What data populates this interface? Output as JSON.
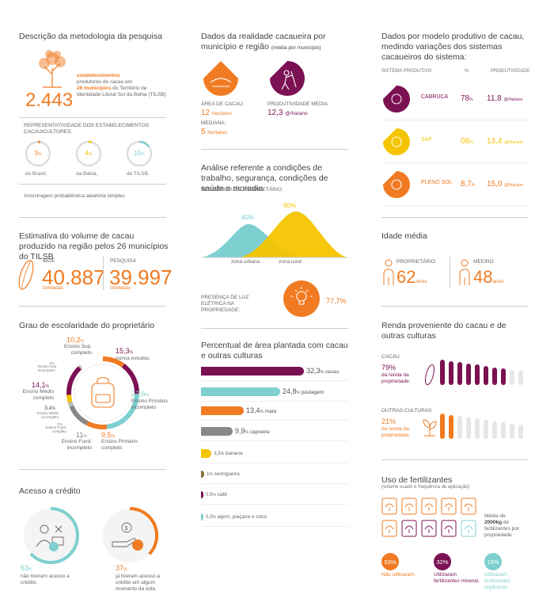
{
  "col1": {
    "method_title": "Descrição da metodologia da pesquisa",
    "establishments_count": "2.443",
    "establishments_bold": "estabelecimentos",
    "establishments_text1": "produtores de cacau em",
    "establishments_bold2": "26 municípios",
    "establishments_text2": "do Território de Identidade Litoral Sul da Bahia (TILSB)",
    "repr_title": "REPRESENTATIVIDADE DOS ESTABELECIMENTOS CACAUICULTORES:",
    "repr": [
      {
        "value": "3",
        "unit": "%",
        "label": "do Brasil;",
        "fraction": 0.03
      },
      {
        "value": "4",
        "unit": "%",
        "label": "da Bahia,",
        "fraction": 0.04
      },
      {
        "value": "15",
        "unit": "%",
        "label": "do TILSB.",
        "fraction": 0.15
      }
    ],
    "sampling": "Amostragem probabilística aleatória simples",
    "volume_title": "Estimativa do volume de cacau produzido na região pelos 26 municípios do TILSB",
    "ibge_label": "IBGE",
    "ibge_value": "40.887",
    "ibge_unit": "toneladas",
    "pesquisa_label": "PESQUISA",
    "pesquisa_value": "39.997",
    "pesquisa_unit": "toneladas",
    "edu_title": "Grau de escolaridade do proprietário",
    "edu": [
      {
        "pct": "10,2",
        "label": "Ensino Sup. completo",
        "color": "#f07b22"
      },
      {
        "pct": "15,3",
        "label": "nunca estudou",
        "color": "#7b1152"
      },
      {
        "pct": "22,6",
        "label": "Ensino Primário incompleto",
        "color": "#7ecfcf"
      },
      {
        "pct": "9,5",
        "label": "Ensino Primário completo",
        "color": "#f07b22"
      },
      {
        "pct": "11",
        "label": "Ensino Fund. incompleto",
        "color": "#888888"
      },
      {
        "pct": "3,4",
        "label": "Ensino Médio incompleto",
        "color": "#f5c400"
      },
      {
        "pct": "14,1",
        "label": "Ensino Médio completo",
        "color": "#7b1152"
      },
      {
        "pct": "1",
        "label": "Ensino Sup. incompleto",
        "color": "#cccccc"
      },
      {
        "pct": "2",
        "label": "Ensino Fund. completo",
        "color": "#bbbbbb"
      }
    ],
    "edu_small_1": "1%",
    "edu_small_2": "2%",
    "pct": "%",
    "credit_title": "Acesso a crédito",
    "credit_no_pct": "63",
    "credit_no_text": "não tiveram acesso a crédito.",
    "credit_yes_pct": "37",
    "credit_yes_text": "já tiveram acesso a crédito em algum momento da vida."
  },
  "col2": {
    "title": "Dados da realidade cacaueira por município e região",
    "title_note": "(média por município)",
    "area_label": "ÁREA DE CACAU:",
    "area_value": "12",
    "area_unit": "hectares",
    "prod_label": "PRODUTIVIDADE MÉDIA:",
    "prod_value": "12,3",
    "prod_unit": "@/ha/ano",
    "median_label": "MEDIANA:",
    "median_value": "5",
    "median_unit": "hectares",
    "work_title": "Análise referente a condições de trabalho, segurança, condições de saúde e moradia",
    "residence_label": "RESIDÊNCIA DO PROPRIETÁRIO:",
    "urban_pct": "40%",
    "rural_pct": "60%",
    "urban_label": "zona urbana",
    "rural_label": "zona rural",
    "light_label": "PRESENÇA DE LUZ ELÉTRICA NA PROPRIEDADE:",
    "light_value": "77,7%",
    "area_title": "Percentual de área plantada com cacau e outras culturas",
    "bars": [
      {
        "pct": "32,3",
        "label": "cacau",
        "value": 32.3,
        "color": "#7b1152"
      },
      {
        "pct": "24,8",
        "label": "pastagem",
        "value": 24.8,
        "color": "#7ecfcf"
      },
      {
        "pct": "13,4",
        "label": "mata",
        "value": 13.4,
        "color": "#f07b22"
      },
      {
        "pct": "9,9",
        "label": "capoeira",
        "value": 9.9,
        "color": "#888888"
      },
      {
        "pct": "3,3",
        "label": "banana",
        "value": 3.3,
        "color": "#f5c400"
      },
      {
        "pct": "1",
        "label": "seringueira",
        "value": 1,
        "color": "#8a6d3b"
      },
      {
        "pct": "0,5",
        "label": "café",
        "value": 0.5,
        "color": "#7b1152"
      },
      {
        "pct": "0,3",
        "label": "aipim, piaçava e coco",
        "value": 0.3,
        "color": "#7ecfcf"
      }
    ]
  },
  "col3": {
    "title": "Dados por modelo produtivo de cacau, medindo variações dos sistemas cacaueiros do sistema:",
    "head_system": "SISTEMA PRODUTIVO",
    "head_pct": "%",
    "head_prod": "PRODUTIVIDADE",
    "systems": [
      {
        "name": "CABRUCA",
        "pct": "78",
        "prod": "11,8",
        "unit": "@/ha/ano",
        "color": "#7b1152"
      },
      {
        "name": "SAF",
        "pct": "08",
        "prod": "13,4",
        "unit": "@/ha/ano",
        "color": "#f5c400"
      },
      {
        "name": "PLENO SOL",
        "pct": "8,7",
        "prod": "15,0",
        "unit": "@/ha/ano",
        "color": "#f07b22"
      }
    ],
    "age_title": "Idade média",
    "owner_label": "PROPRIETÁRIO",
    "owner_age": "62",
    "owner_unit": "anos",
    "meeiro_label": "MEEIRO",
    "meeiro_age": "48",
    "meeiro_unit": "anos",
    "income_title": "Renda proveniente do cacau e de outras culturas",
    "cacau_label": "CACAU",
    "cacau_pct": "79%",
    "cacau_text": "da renda da propriedade.",
    "cacau_fraction": 0.79,
    "other_label": "OUTRAS CULTURAS",
    "other_pct": "21%",
    "other_text": "da renda da propriedade.",
    "other_fraction": 0.21,
    "fert_title": "Uso de fertilizantes",
    "fert_note": "(volume usado e frequência de aplicação)",
    "fert_avg_text1": "Média de",
    "fert_avg_value": "2000kg",
    "fert_avg_text2": "de fertilizantes por propriedade",
    "fert_stats": [
      {
        "pct": "53%",
        "text": "Não utilizaram.",
        "color": "#f07b22"
      },
      {
        "pct": "32%",
        "text": "Utilizaram fertilizantes mineral.",
        "color": "#7b1152"
      },
      {
        "pct": "15%",
        "text": "Utilizaram fertilizantes orgânicos.",
        "color": "#7ecfcf"
      }
    ]
  }
}
